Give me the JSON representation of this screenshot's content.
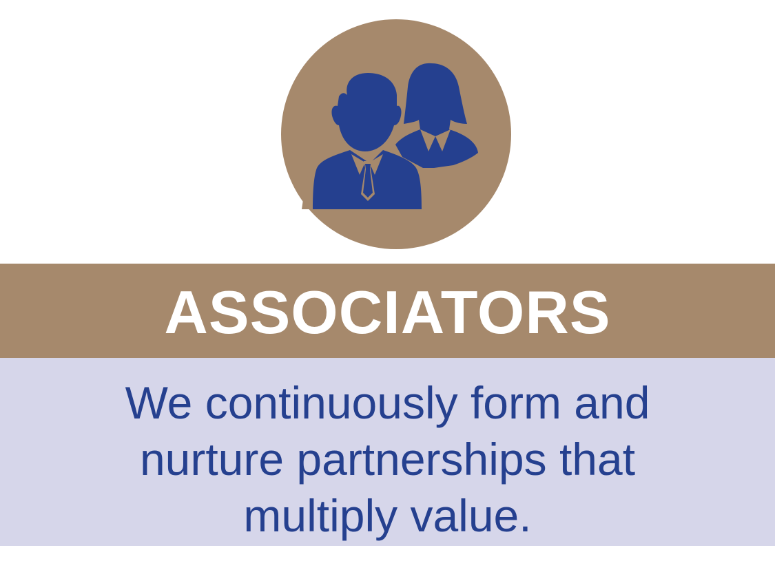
{
  "colors": {
    "accent_tan": "#a6896c",
    "icon_blue": "#25408f",
    "description_band": "#d6d6ea",
    "title_text": "#ffffff",
    "description_text": "#25408f"
  },
  "icon": {
    "name": "people-icon",
    "description": "man and woman silhouettes"
  },
  "title": "ASSOCIATORS",
  "description": {
    "lines": [
      "We continuously form and",
      "nurture partnerships that",
      "multiply value."
    ]
  }
}
